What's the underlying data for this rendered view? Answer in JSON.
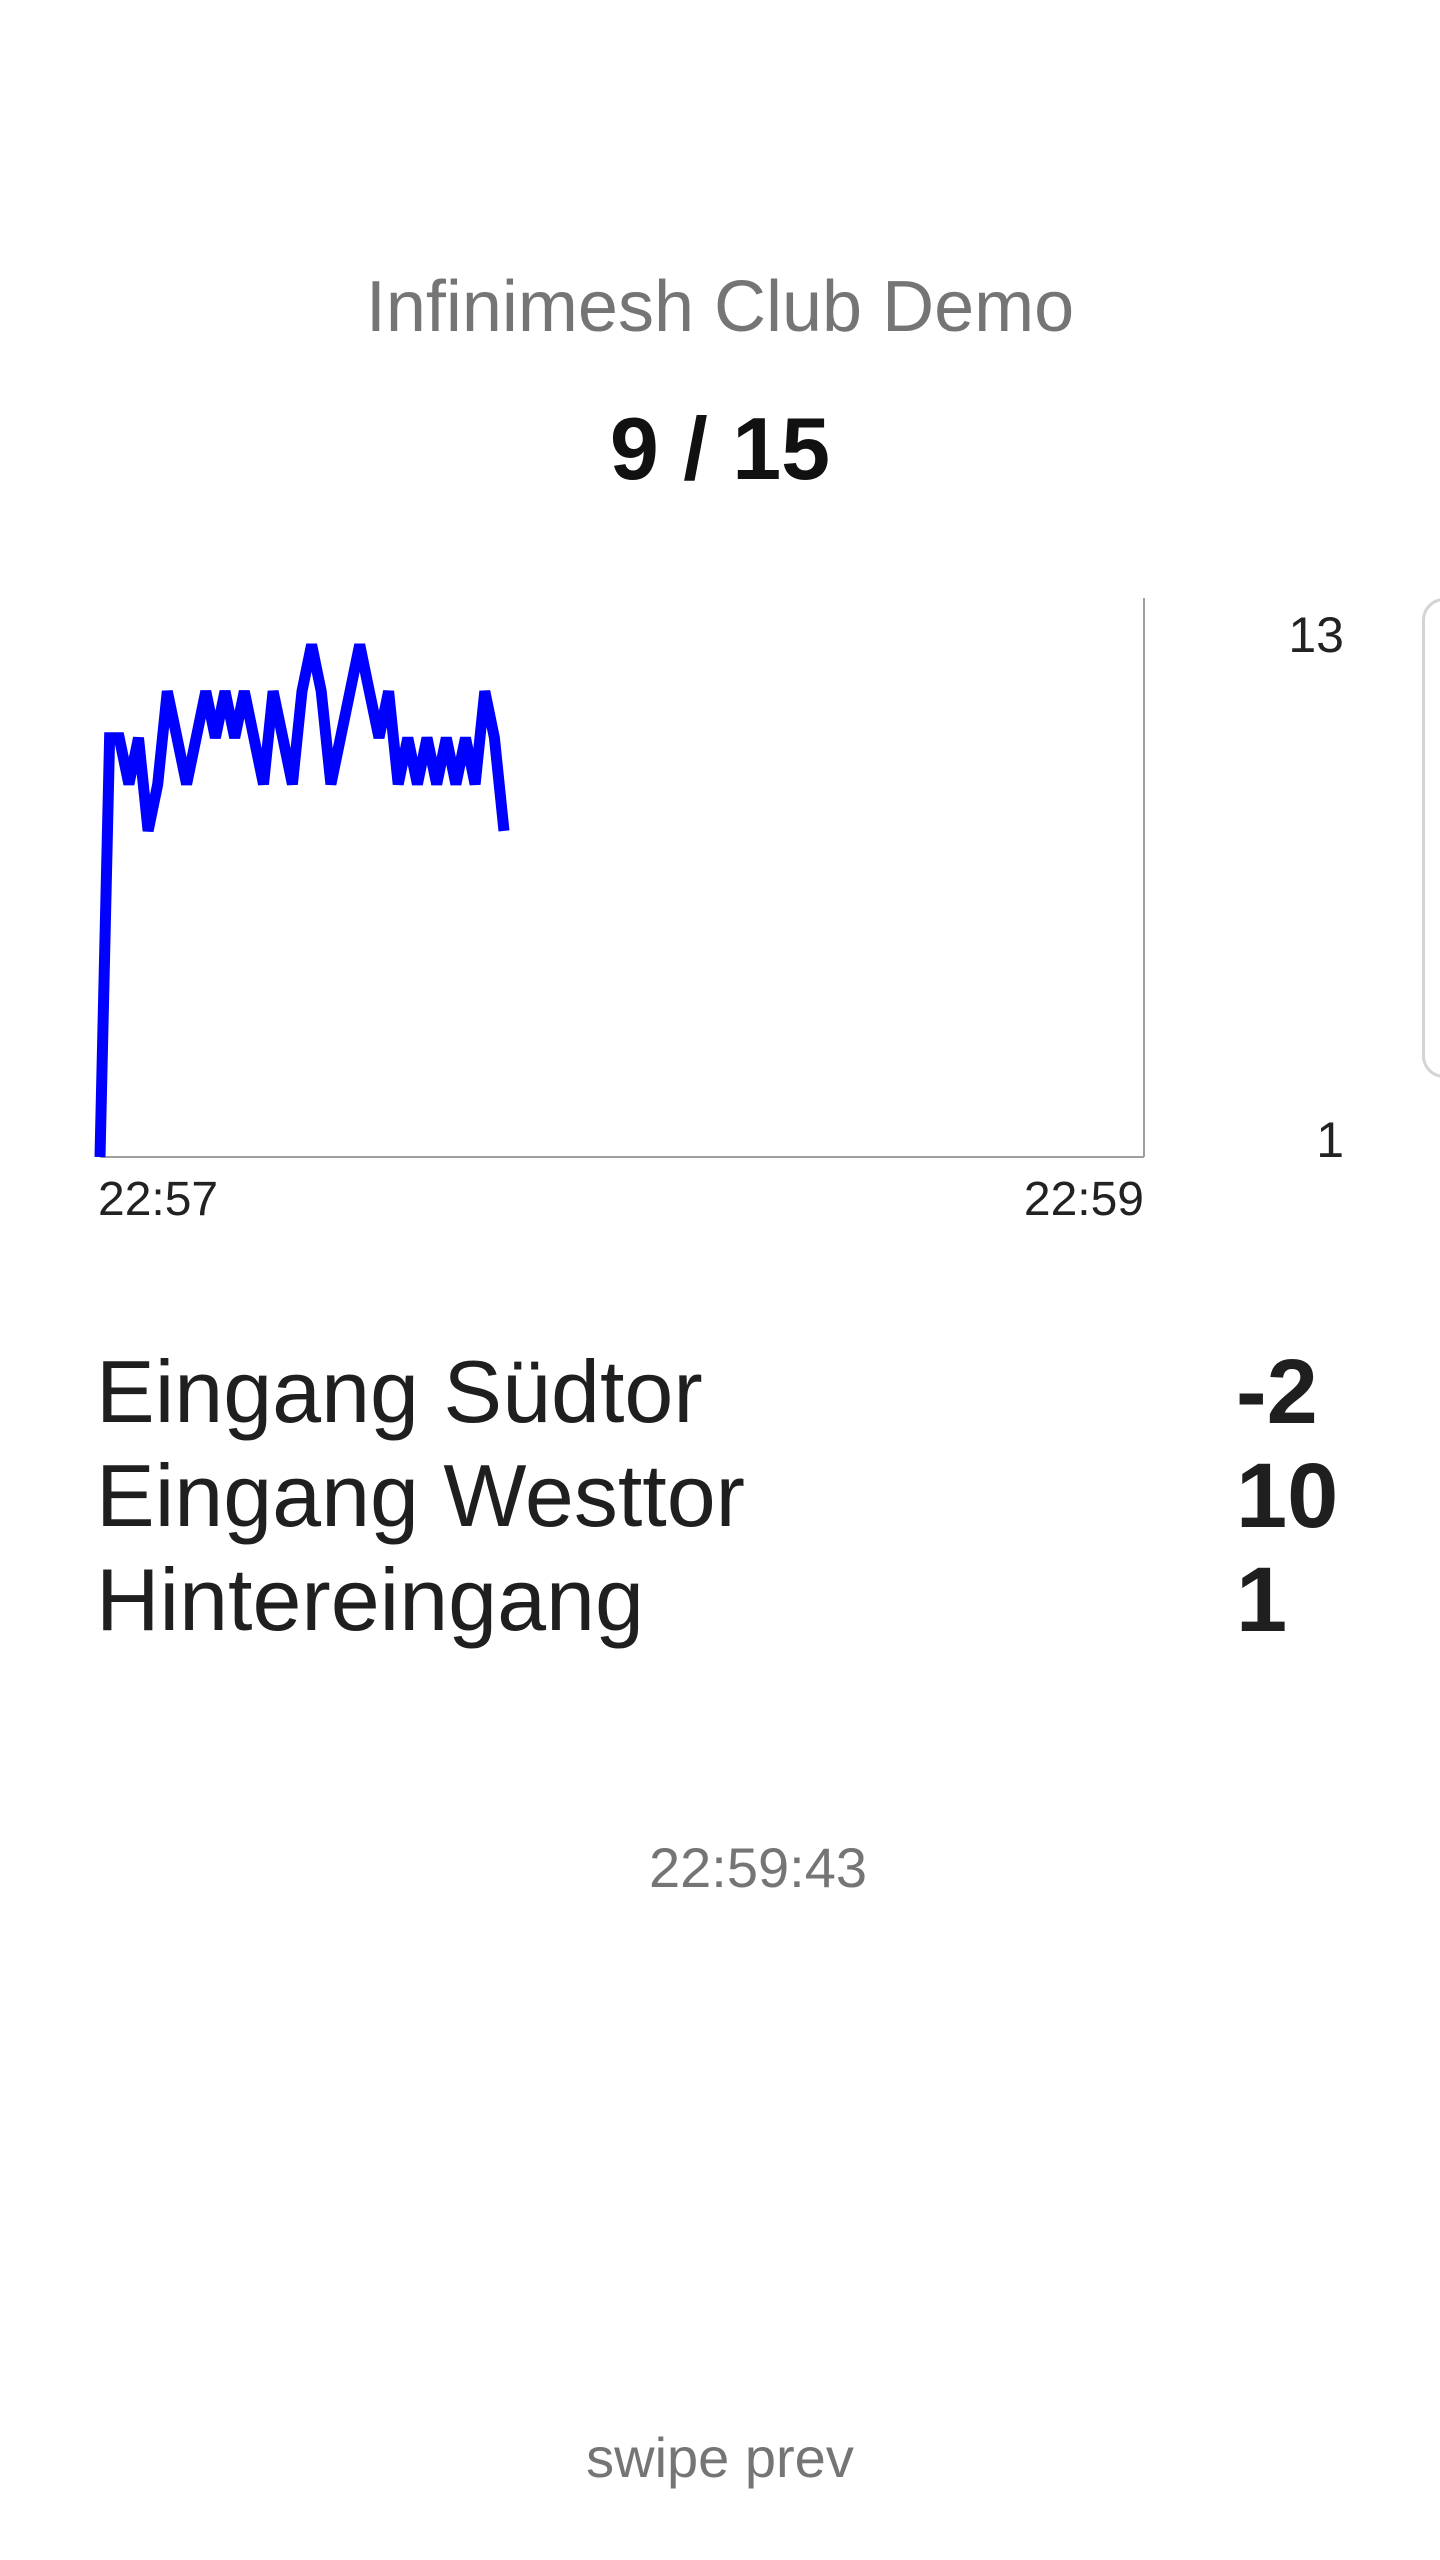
{
  "header": {
    "title": "Infinimesh Club Demo",
    "occupancy": "9 / 15"
  },
  "chart_data": {
    "type": "line",
    "title": "",
    "xlabel": "",
    "ylabel": "",
    "x_tick_labels": [
      "22:57",
      "22:59"
    ],
    "y_tick_labels": [
      "13",
      "1"
    ],
    "ylim": [
      1,
      13
    ],
    "grid": false,
    "line_color": "#0000ff",
    "series": [
      {
        "values": [
          1,
          10,
          10,
          9,
          10,
          8,
          9,
          11,
          10,
          9,
          10,
          11,
          10,
          11,
          10,
          11,
          10,
          9,
          11,
          10,
          9,
          11,
          12,
          11,
          9,
          10,
          11,
          12,
          11,
          10,
          11,
          9,
          10,
          9,
          10,
          9,
          10,
          9,
          10,
          9,
          11,
          10,
          8
        ]
      }
    ]
  },
  "entrances": [
    {
      "name": "Eingang Südtor",
      "value": "-2"
    },
    {
      "name": "Eingang Westtor",
      "value": "10"
    },
    {
      "name": "Hintereingang",
      "value": "1"
    }
  ],
  "status": {
    "timestamp": "22:59:43"
  },
  "footer": {
    "swipe_label": "swipe prev"
  }
}
